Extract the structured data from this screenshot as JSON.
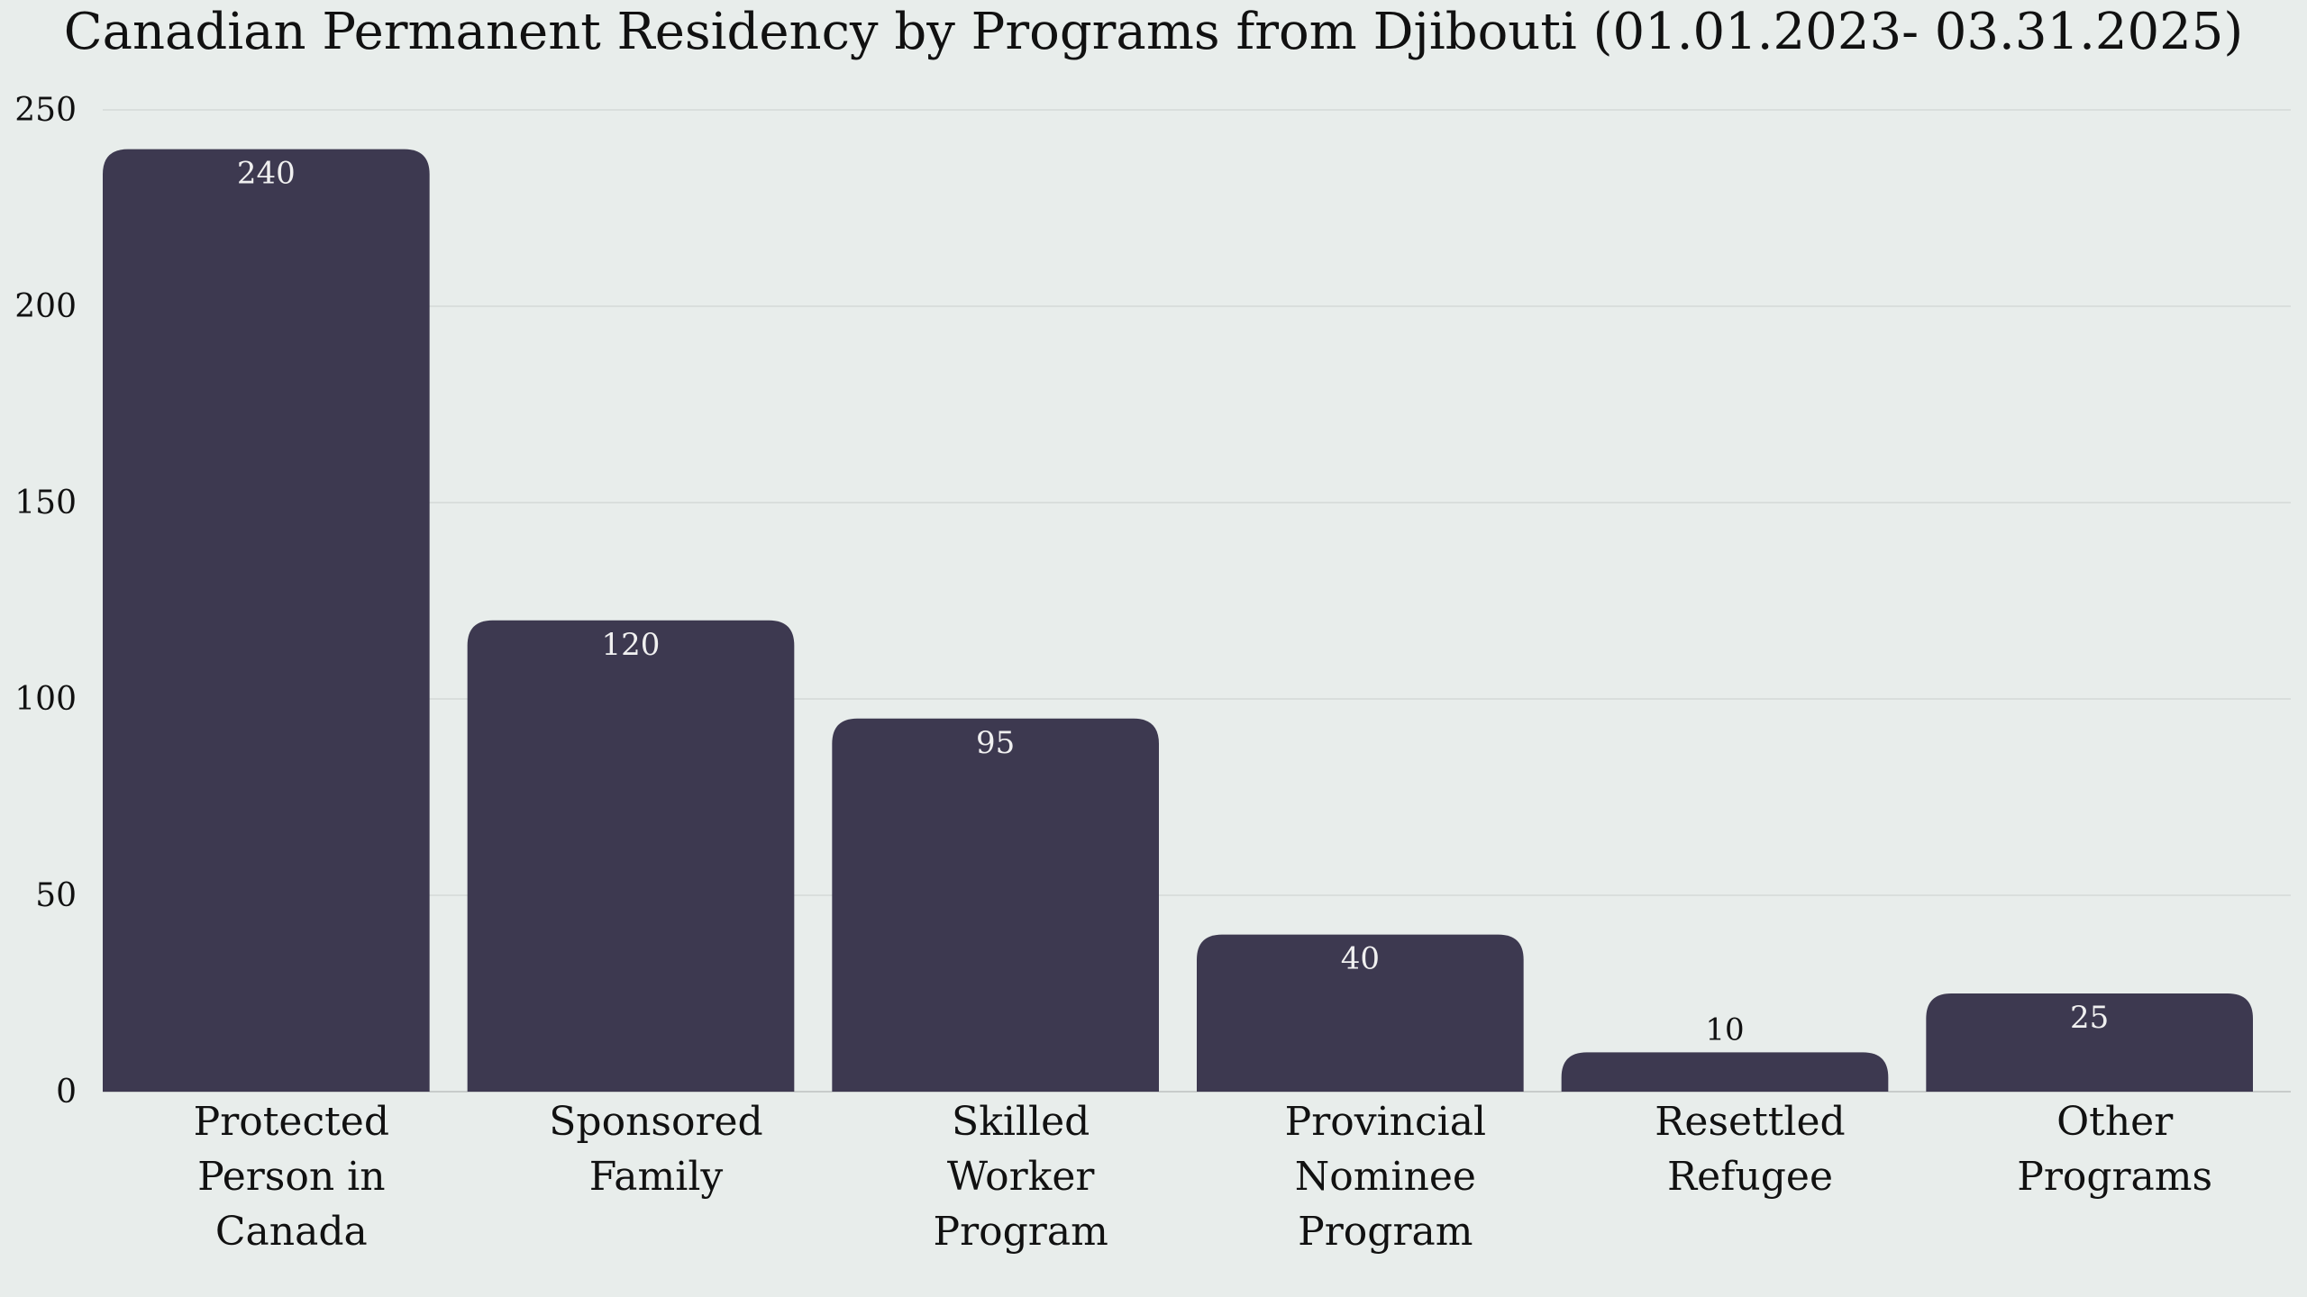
{
  "chart_data": {
    "type": "bar",
    "title": "Canadian Permanent Residency by Programs from Djibouti (01.01.2023- 03.31.2025)",
    "xlabel": "",
    "ylabel": "",
    "categories": [
      [
        "Protected",
        "Person in",
        "Canada"
      ],
      [
        "Sponsored",
        "Family"
      ],
      [
        "Skilled",
        "Worker",
        "Program"
      ],
      [
        "Provincial",
        "Nominee",
        "Program"
      ],
      [
        "Resettled",
        "Refugee"
      ],
      [
        "Other",
        "Programs"
      ]
    ],
    "values": [
      240,
      120,
      95,
      40,
      10,
      25
    ],
    "value_labels": [
      "240",
      "120",
      "95",
      "40",
      "10",
      "25"
    ],
    "ylim": [
      0,
      250
    ],
    "yticks": [
      "0",
      "50",
      "100",
      "150",
      "200",
      "250"
    ],
    "grid": true,
    "legend": "none",
    "colors": {
      "bar": "#3d3950",
      "background": "#e8edeb",
      "grid": "#d9dedc",
      "label_inside": "#f0f0f0",
      "label_outside": "#111111"
    }
  }
}
